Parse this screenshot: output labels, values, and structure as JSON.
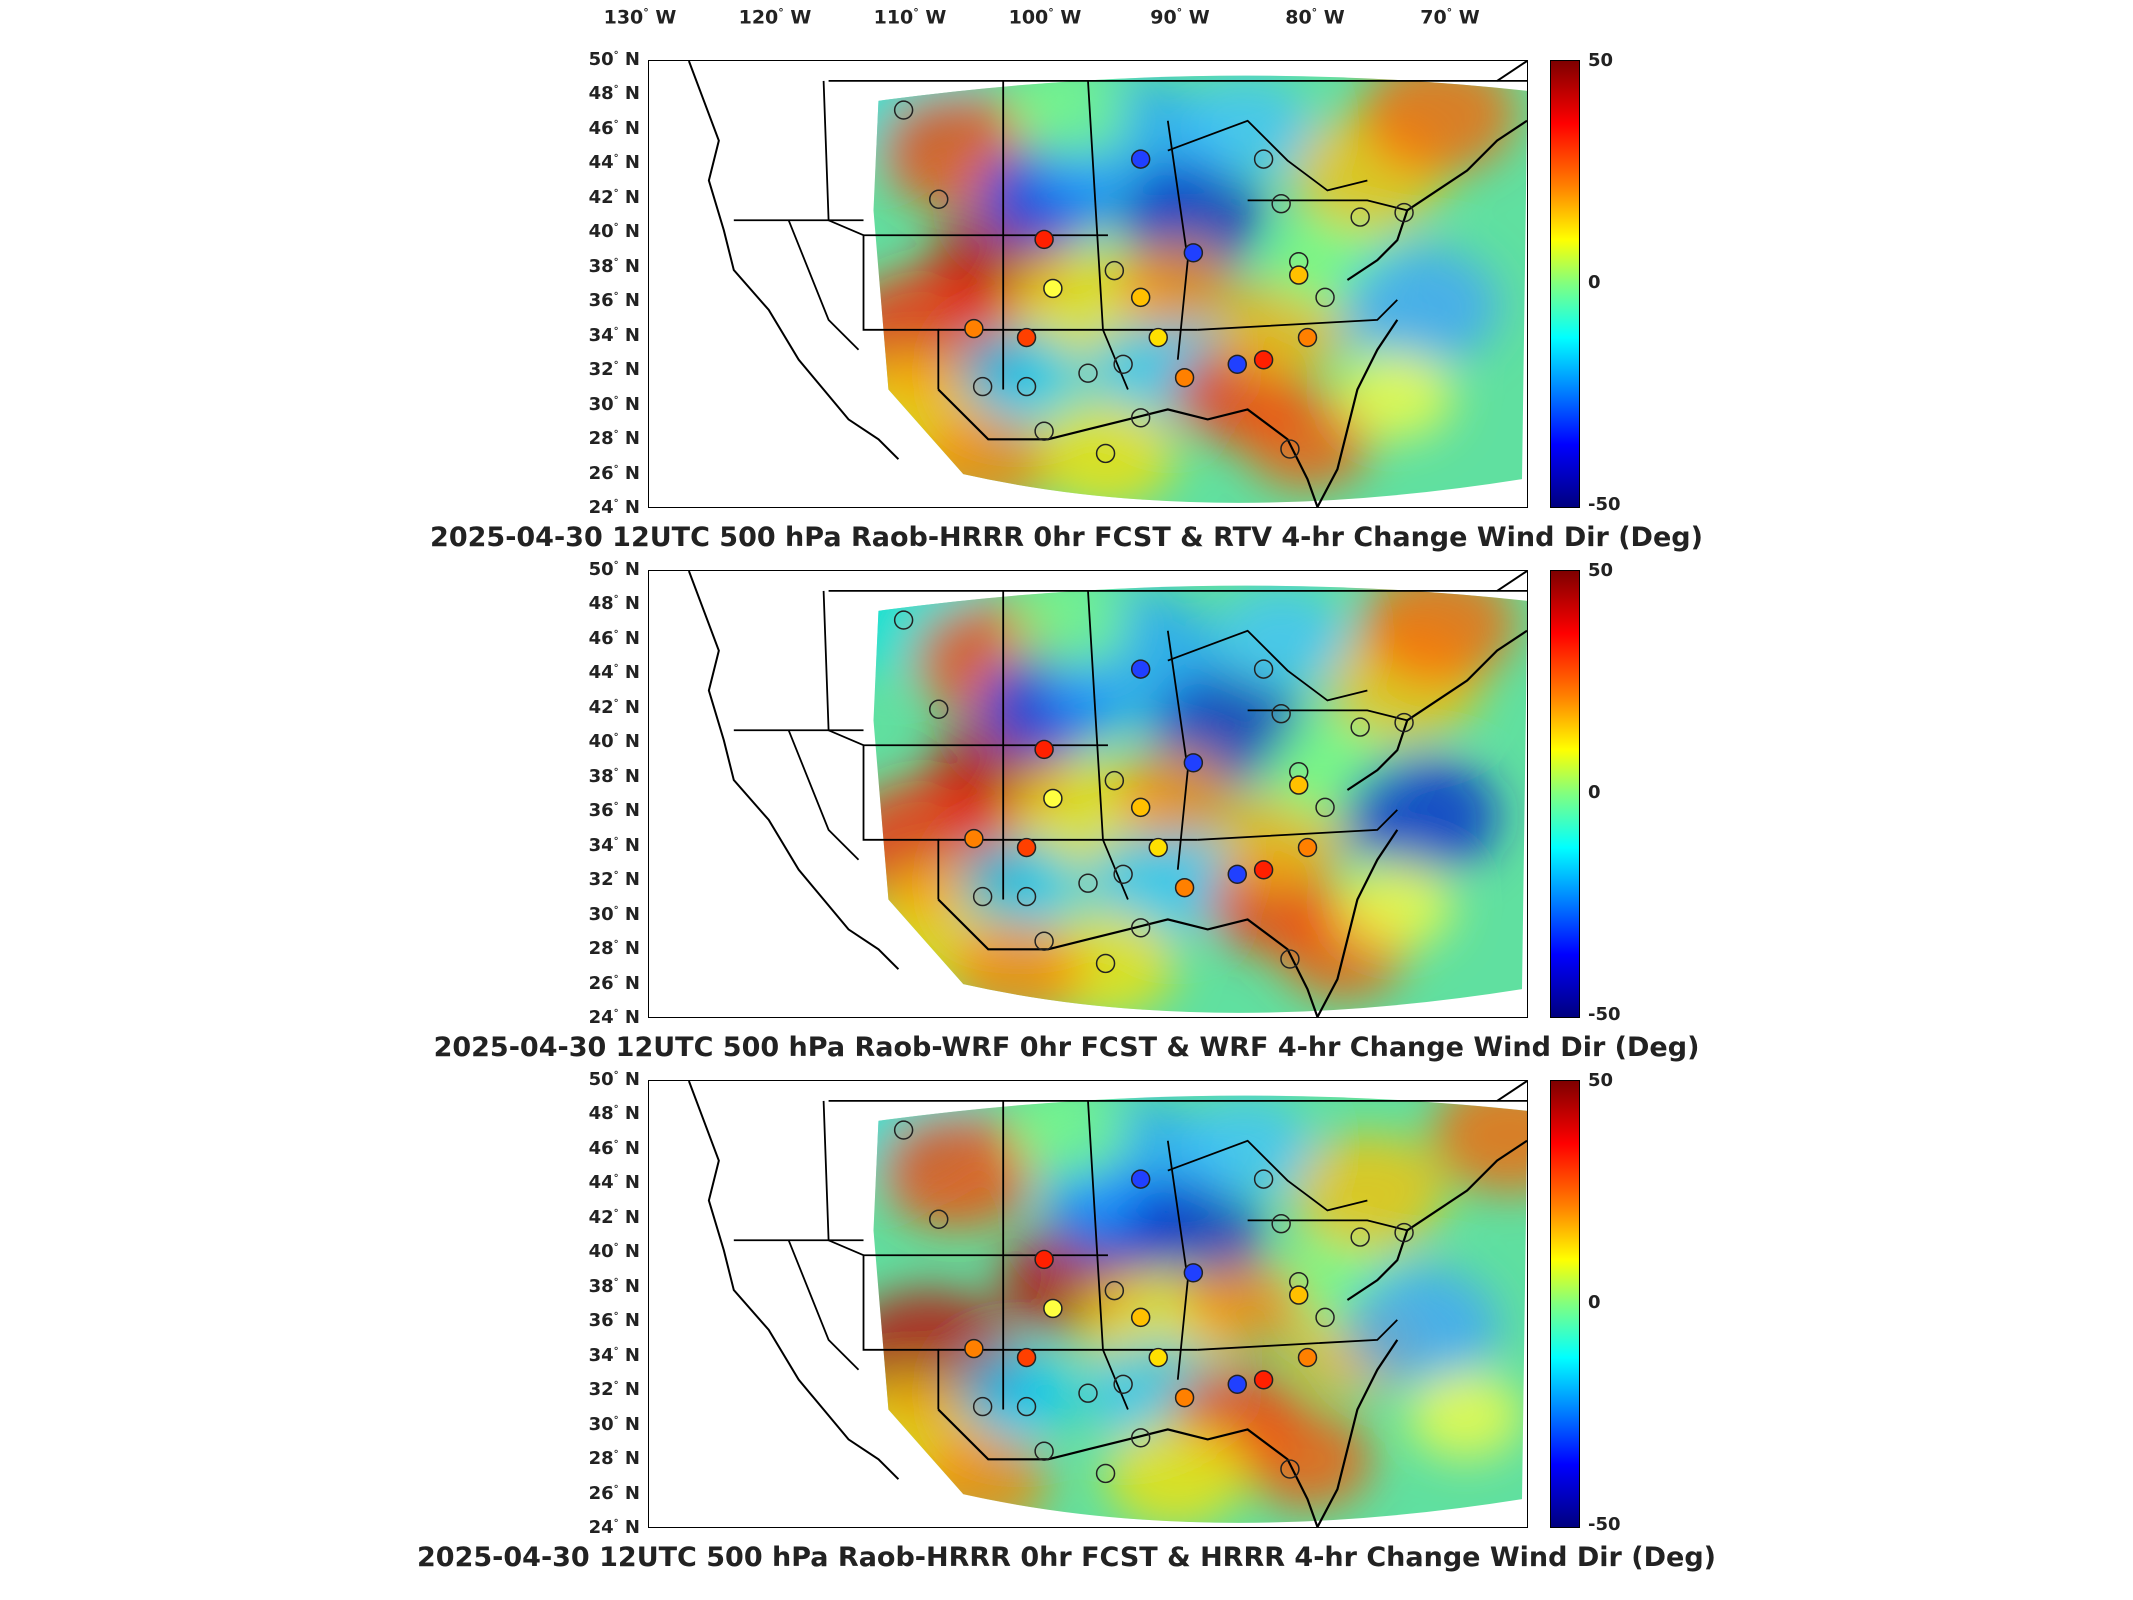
{
  "longitude_labels": [
    {
      "deg": "130",
      "dir": "W"
    },
    {
      "deg": "120",
      "dir": "W"
    },
    {
      "deg": "110",
      "dir": "W"
    },
    {
      "deg": "100",
      "dir": "W"
    },
    {
      "deg": "90",
      "dir": "W"
    },
    {
      "deg": "80",
      "dir": "W"
    },
    {
      "deg": "70",
      "dir": "W"
    }
  ],
  "latitude_labels": [
    {
      "deg": "50",
      "dir": "N"
    },
    {
      "deg": "48",
      "dir": "N"
    },
    {
      "deg": "46",
      "dir": "N"
    },
    {
      "deg": "44",
      "dir": "N"
    },
    {
      "deg": "42",
      "dir": "N"
    },
    {
      "deg": "40",
      "dir": "N"
    },
    {
      "deg": "38",
      "dir": "N"
    },
    {
      "deg": "36",
      "dir": "N"
    },
    {
      "deg": "34",
      "dir": "N"
    },
    {
      "deg": "32",
      "dir": "N"
    },
    {
      "deg": "30",
      "dir": "N"
    },
    {
      "deg": "28",
      "dir": "N"
    },
    {
      "deg": "26",
      "dir": "N"
    },
    {
      "deg": "24",
      "dir": "N"
    }
  ],
  "colorbar": {
    "max_label": "50",
    "mid_label": "0",
    "min_label": "-50"
  },
  "panels": [
    {
      "title": "2025-04-30 12UTC 500 hPa Raob-HRRR 0hr FCST & RTV 4-hr Change Wind Dir (Deg)",
      "variant": 0
    },
    {
      "title": "2025-04-30 12UTC 500 hPa Raob-WRF 0hr FCST & WRF 4-hr Change Wind Dir (Deg)",
      "variant": 1
    },
    {
      "title": "2025-04-30 12UTC 500 hPa Raob-HRRR 0hr FCST & HRRR 4-hr Change Wind Dir (Deg)",
      "variant": 2
    }
  ],
  "colors": {
    "max": "#7f0000",
    "mid": "#80ff80",
    "min": "#00007f"
  }
}
